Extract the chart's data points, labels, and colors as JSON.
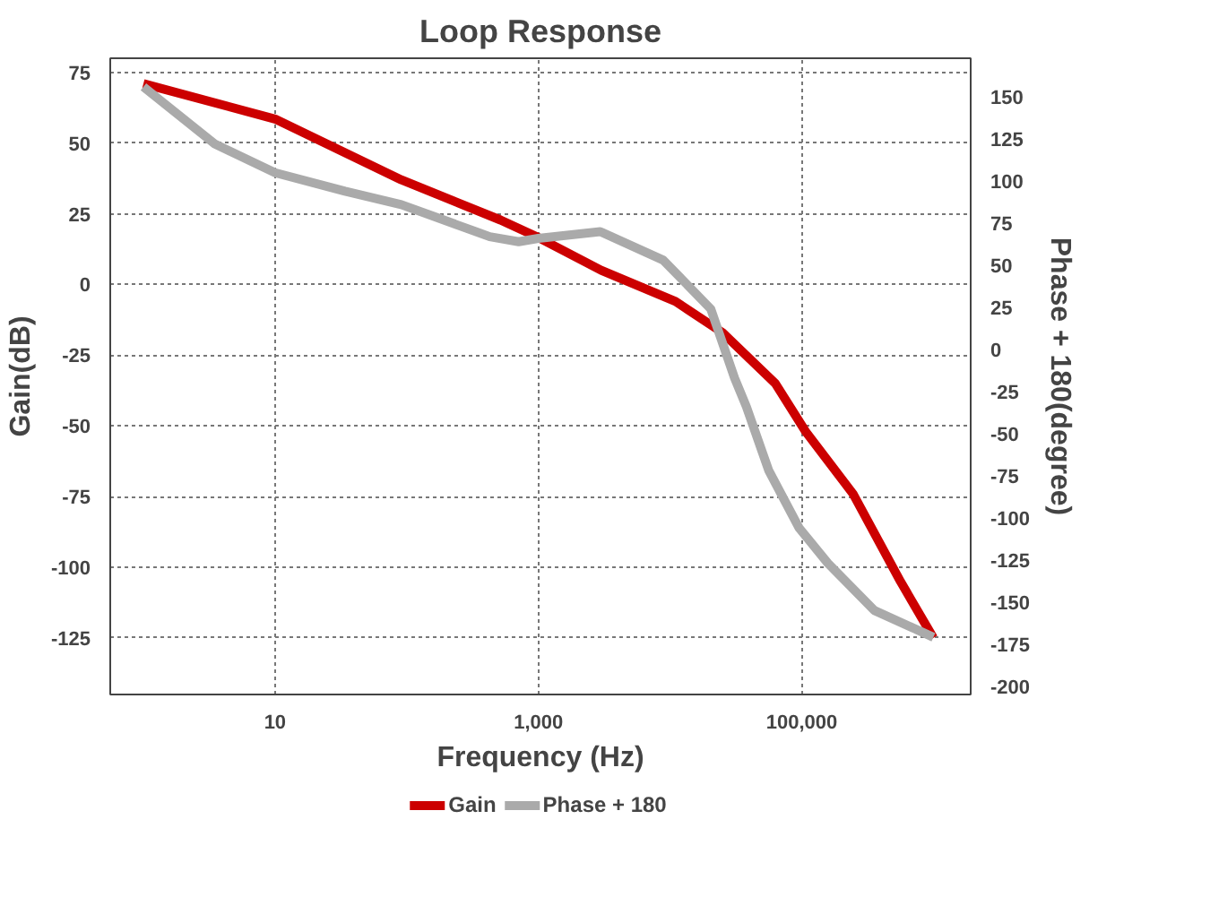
{
  "chart_data": {
    "type": "line",
    "title": "Loop Response",
    "xlabel": "Frequency (Hz)",
    "ylabel": "Gain(dB)",
    "y2label": "Phase + 180(degree)",
    "log": "x",
    "xlim": [
      0.56,
      1920000
    ],
    "xticks": [
      {
        "value": 10,
        "label": "10"
      },
      {
        "value": 1000,
        "label": "1,000"
      },
      {
        "value": 100000,
        "label": "100,000"
      }
    ],
    "ylim": [
      -145,
      80
    ],
    "yticks": [
      -125,
      -100,
      -75,
      -50,
      -25,
      0,
      25,
      50,
      75
    ],
    "y2lim": [
      -205,
      173
    ],
    "y2ticks": [
      -200,
      -175,
      -150,
      -125,
      -100,
      -75,
      -50,
      -25,
      0,
      25,
      50,
      75,
      100,
      125,
      150
    ],
    "grid": true,
    "legend": "bottom",
    "line_style": "solid",
    "marker": "none",
    "series": [
      {
        "name": "Gain",
        "color": "#cc0000",
        "x": [
          1,
          10,
          91,
          515,
          1000,
          3000,
          11000,
          25000,
          63000,
          107000,
          245000,
          562000,
          1000000
        ],
        "values": [
          71,
          58.5,
          37,
          22.8,
          16.6,
          5,
          -6,
          -17,
          -35,
          -52,
          -74,
          -105,
          -125
        ]
      },
      {
        "name": "Phase + 180",
        "color": "#aaaaaa",
        "axis": "y2",
        "x": [
          1,
          3.5,
          10,
          34,
          91,
          427,
          708,
          1000,
          2950,
          8900,
          20400,
          30900,
          38000,
          56200,
          95500,
          158000,
          355000,
          1000000
        ],
        "values": [
          156,
          122,
          105,
          94,
          86,
          67,
          64,
          66,
          70,
          53,
          24,
          -17,
          -34,
          -72,
          -106,
          -127,
          -155,
          -171
        ]
      }
    ]
  }
}
